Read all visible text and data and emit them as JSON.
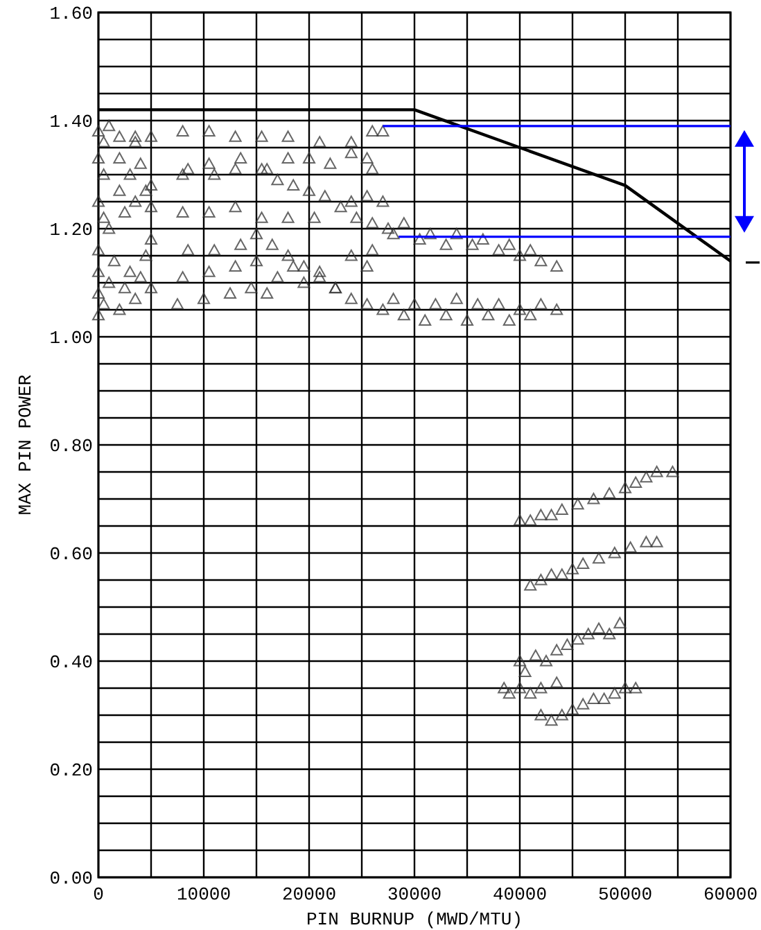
{
  "chart_data": {
    "type": "scatter",
    "xlabel": "PIN BURNUP (MWD/MTU)",
    "ylabel": "MAX PIN POWER",
    "xlim": [
      0,
      60000
    ],
    "ylim": [
      0,
      1.6
    ],
    "xticks": [
      0,
      {
        "value": 5000,
        "label": null
      },
      10000,
      {
        "value": 15000,
        "label": null
      },
      20000,
      {
        "value": 25000,
        "label": null
      },
      30000,
      {
        "value": 35000,
        "label": null
      },
      40000,
      {
        "value": 45000,
        "label": null
      },
      50000,
      {
        "value": 55000,
        "label": null
      },
      60000
    ],
    "yticks": [
      {
        "value": 0,
        "label": "0.00"
      },
      {
        "value": 0.05,
        "label": null
      },
      {
        "value": 0.1,
        "label": null
      },
      {
        "value": 0.15,
        "label": null
      },
      {
        "value": 0.2,
        "label": "0.20"
      },
      {
        "value": 0.25,
        "label": null
      },
      {
        "value": 0.3,
        "label": null
      },
      {
        "value": 0.35,
        "label": null
      },
      {
        "value": 0.4,
        "label": "0.40"
      },
      {
        "value": 0.45,
        "label": null
      },
      {
        "value": 0.5,
        "label": null
      },
      {
        "value": 0.55,
        "label": null
      },
      {
        "value": 0.6,
        "label": "0.60"
      },
      {
        "value": 0.65,
        "label": null
      },
      {
        "value": 0.7,
        "label": null
      },
      {
        "value": 0.75,
        "label": null
      },
      {
        "value": 0.8,
        "label": "0.80"
      },
      {
        "value": 0.85,
        "label": null
      },
      {
        "value": 0.9,
        "label": null
      },
      {
        "value": 0.95,
        "label": null
      },
      {
        "value": 1,
        "label": "1.00"
      },
      {
        "value": 1.05,
        "label": null
      },
      {
        "value": 1.1,
        "label": null
      },
      {
        "value": 1.15,
        "label": null
      },
      {
        "value": 1.2,
        "label": "1.20"
      },
      {
        "value": 1.25,
        "label": null
      },
      {
        "value": 1.3,
        "label": null
      },
      {
        "value": 1.35,
        "label": null
      },
      {
        "value": 1.4,
        "label": "1.40"
      },
      {
        "value": 1.45,
        "label": null
      },
      {
        "value": 1.5,
        "label": null
      },
      {
        "value": 1.55,
        "label": null
      },
      {
        "value": 1.6,
        "label": "1.60"
      }
    ],
    "grid": true,
    "marker": "triangle",
    "series": [
      {
        "color": "#333333",
        "x": [
          0,
          500,
          1000,
          2000,
          3500,
          3500,
          5000,
          8000,
          10500,
          13000,
          15500,
          18000,
          21000,
          24000,
          26000,
          27000,
          0,
          500,
          2000,
          3000,
          4000,
          5000,
          8000,
          8500,
          10500,
          11000,
          13000,
          13500,
          16000,
          18000,
          20000,
          22000,
          24000,
          25500,
          26000,
          0,
          500,
          1000,
          2000,
          2500,
          3500,
          4500,
          5000,
          8000,
          10500,
          13000,
          15500,
          18000,
          20500,
          24000,
          25500,
          27000,
          15500,
          17000,
          18500,
          20000,
          21500,
          23000,
          24500,
          26000,
          27500,
          28000,
          29000,
          30500,
          31500,
          33000,
          34000,
          35500,
          36500,
          38000,
          39000,
          40000,
          41000,
          42000,
          43500,
          0,
          0,
          0,
          0,
          500,
          1000,
          1500,
          2000,
          2500,
          3000,
          3500,
          4000,
          4500,
          5000,
          5000,
          7500,
          8000,
          8500,
          10000,
          10500,
          11000,
          12500,
          13000,
          13500,
          14500,
          15000,
          16000,
          17000,
          18500,
          19500,
          21000,
          22500,
          24000,
          25500,
          26000,
          15000,
          16500,
          18000,
          19500,
          21000,
          22500,
          24000,
          25500,
          27000,
          28000,
          29000,
          30000,
          31000,
          32000,
          33000,
          34000,
          35000,
          36000,
          37000,
          38000,
          39000,
          40000,
          41000,
          42000,
          43500,
          40000,
          41000,
          42000,
          43000,
          44000,
          45500,
          47000,
          48500,
          50000,
          51000,
          52000,
          53000,
          54500,
          41000,
          42000,
          43000,
          44000,
          45000,
          46000,
          47500,
          49000,
          50500,
          52000,
          53000,
          40000,
          40500,
          41500,
          42500,
          43500,
          44500,
          45500,
          46500,
          47500,
          48500,
          49500,
          38500,
          39000,
          40000,
          41000,
          42000,
          43500,
          42000,
          43000,
          44000,
          45000,
          46000,
          47000,
          48000,
          49000,
          50000,
          51000
        ],
        "values": [
          1.38,
          1.36,
          1.39,
          1.37,
          1.36,
          1.37,
          1.37,
          1.38,
          1.38,
          1.37,
          1.37,
          1.37,
          1.36,
          1.36,
          1.38,
          1.38,
          1.33,
          1.3,
          1.33,
          1.3,
          1.32,
          1.28,
          1.3,
          1.31,
          1.32,
          1.3,
          1.31,
          1.33,
          1.31,
          1.33,
          1.33,
          1.32,
          1.34,
          1.33,
          1.31,
          1.25,
          1.22,
          1.2,
          1.27,
          1.23,
          1.25,
          1.27,
          1.24,
          1.23,
          1.23,
          1.24,
          1.22,
          1.22,
          1.22,
          1.25,
          1.26,
          1.25,
          1.31,
          1.29,
          1.28,
          1.27,
          1.26,
          1.24,
          1.22,
          1.21,
          1.2,
          1.19,
          1.21,
          1.18,
          1.19,
          1.17,
          1.19,
          1.17,
          1.18,
          1.16,
          1.17,
          1.15,
          1.16,
          1.14,
          1.13,
          1.04,
          1.08,
          1.12,
          1.16,
          1.06,
          1.1,
          1.14,
          1.05,
          1.09,
          1.12,
          1.07,
          1.11,
          1.15,
          1.09,
          1.18,
          1.06,
          1.11,
          1.16,
          1.07,
          1.12,
          1.16,
          1.08,
          1.13,
          1.17,
          1.09,
          1.14,
          1.08,
          1.11,
          1.13,
          1.1,
          1.12,
          1.09,
          1.15,
          1.13,
          1.16,
          1.19,
          1.17,
          1.15,
          1.13,
          1.11,
          1.09,
          1.07,
          1.06,
          1.05,
          1.07,
          1.04,
          1.06,
          1.03,
          1.06,
          1.04,
          1.07,
          1.03,
          1.06,
          1.04,
          1.06,
          1.03,
          1.05,
          1.04,
          1.06,
          1.05,
          0.66,
          0.66,
          0.67,
          0.67,
          0.68,
          0.69,
          0.7,
          0.71,
          0.72,
          0.73,
          0.74,
          0.75,
          0.75,
          0.54,
          0.55,
          0.56,
          0.56,
          0.57,
          0.58,
          0.59,
          0.6,
          0.61,
          0.62,
          0.62,
          0.4,
          0.38,
          0.41,
          0.4,
          0.42,
          0.43,
          0.44,
          0.45,
          0.46,
          0.45,
          0.47,
          0.35,
          0.34,
          0.35,
          0.34,
          0.35,
          0.36,
          0.3,
          0.29,
          0.3,
          0.31,
          0.32,
          0.33,
          0.33,
          0.34,
          0.35,
          0.35
        ]
      },
      {
        "type": "line",
        "marker": "none",
        "color": "#000000",
        "x": [
          0,
          30000,
          50000,
          60000
        ],
        "values": [
          1.42,
          1.42,
          1.28,
          1.14
        ]
      },
      {
        "type": "line",
        "marker": "none",
        "color": "#0000ff",
        "x": [
          27000,
          60000
        ],
        "values": [
          1.39,
          1.39
        ]
      },
      {
        "type": "line",
        "marker": "none",
        "color": "#0000ff",
        "x": [
          28500,
          60000
        ],
        "values": [
          1.185,
          1.185
        ]
      }
    ]
  }
}
